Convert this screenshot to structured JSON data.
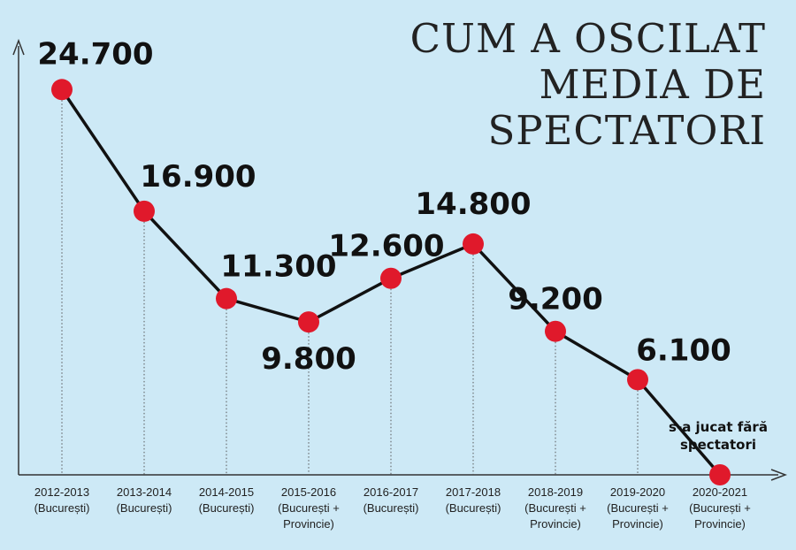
{
  "title_lines": [
    "CUM A OSCILAT",
    "MEDIA DE",
    "SPECTATORI"
  ],
  "colors": {
    "background": "#cde9f6",
    "marker": "#e0192b",
    "line": "#111111"
  },
  "chart_data": {
    "type": "line",
    "title": "CUM A OSCILAT MEDIA DE SPECTATORI",
    "categories": [
      [
        "2012-2013",
        "(București)"
      ],
      [
        "2013-2014",
        "(București)"
      ],
      [
        "2014-2015",
        "(București)"
      ],
      [
        "2015-2016",
        "(București +",
        "Provincie)"
      ],
      [
        "2016-2017",
        "(București)"
      ],
      [
        "2017-2018",
        "(București)"
      ],
      [
        "2018-2019",
        "(București +",
        "Provincie)"
      ],
      [
        "2019-2020",
        "(București +",
        "Provincie)"
      ],
      [
        "2020-2021",
        "(București +",
        "Provincie)"
      ]
    ],
    "values": [
      24700,
      16900,
      11300,
      9800,
      12600,
      14800,
      9200,
      6100,
      0
    ],
    "labels": [
      "24.700",
      "16.900",
      "11.300",
      "9.800",
      "12.600",
      "14.800",
      "9.200",
      "6.100",
      ""
    ],
    "annotation": [
      "s-a jucat fără",
      "spectatori"
    ],
    "ylim": [
      0,
      25000
    ],
    "grid": false,
    "legend": "none"
  }
}
